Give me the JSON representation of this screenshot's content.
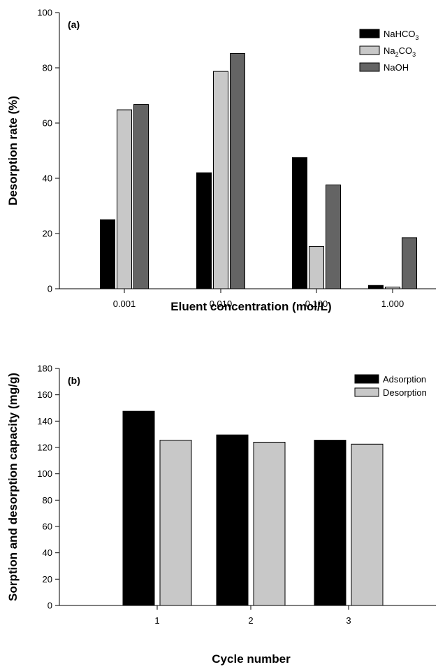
{
  "chart_data": [
    {
      "type": "bar",
      "panel_label": "(a)",
      "categories": [
        "0.001",
        "0.010",
        "0.100",
        "1.000"
      ],
      "series": [
        {
          "name": "NaHCO3",
          "name_base": "NaHCO",
          "name_sub": "3",
          "color": "#000000",
          "values": [
            25,
            42,
            47.5,
            1.2
          ]
        },
        {
          "name": "Na2CO3",
          "name_base": "Na",
          "name_sub": "2",
          "name_tail": "CO",
          "name_sub2": "3",
          "color": "#c8c8c8",
          "values": [
            64.8,
            78.7,
            15.3,
            0.6
          ]
        },
        {
          "name": "NaOH",
          "name_base": "NaOH",
          "color": "#646464",
          "values": [
            66.7,
            85.2,
            37.6,
            18.5
          ]
        }
      ],
      "xlabel": "Eluent concentration (mol/L)",
      "ylabel": "Desorption rate (%)",
      "ylim": [
        0,
        100
      ],
      "yticks": [
        "0",
        "20",
        "40",
        "60",
        "80",
        "100"
      ],
      "grid": false,
      "legend": "top-right"
    },
    {
      "type": "bar",
      "panel_label": "(b)",
      "categories": [
        "1",
        "2",
        "3"
      ],
      "series": [
        {
          "name": "Adsorption",
          "color": "#000000",
          "values": [
            147.5,
            129.5,
            125.5
          ]
        },
        {
          "name": "Desorption",
          "color": "#c8c8c8",
          "values": [
            125.5,
            124,
            122.5
          ]
        }
      ],
      "xlabel": "Cycle number",
      "ylabel": "Sorption and desorption capacity (mg/g)",
      "ylim": [
        0,
        180
      ],
      "yticks": [
        "0",
        "20",
        "40",
        "60",
        "80",
        "100",
        "120",
        "140",
        "160",
        "180"
      ],
      "grid": false,
      "legend": "top-right"
    }
  ]
}
